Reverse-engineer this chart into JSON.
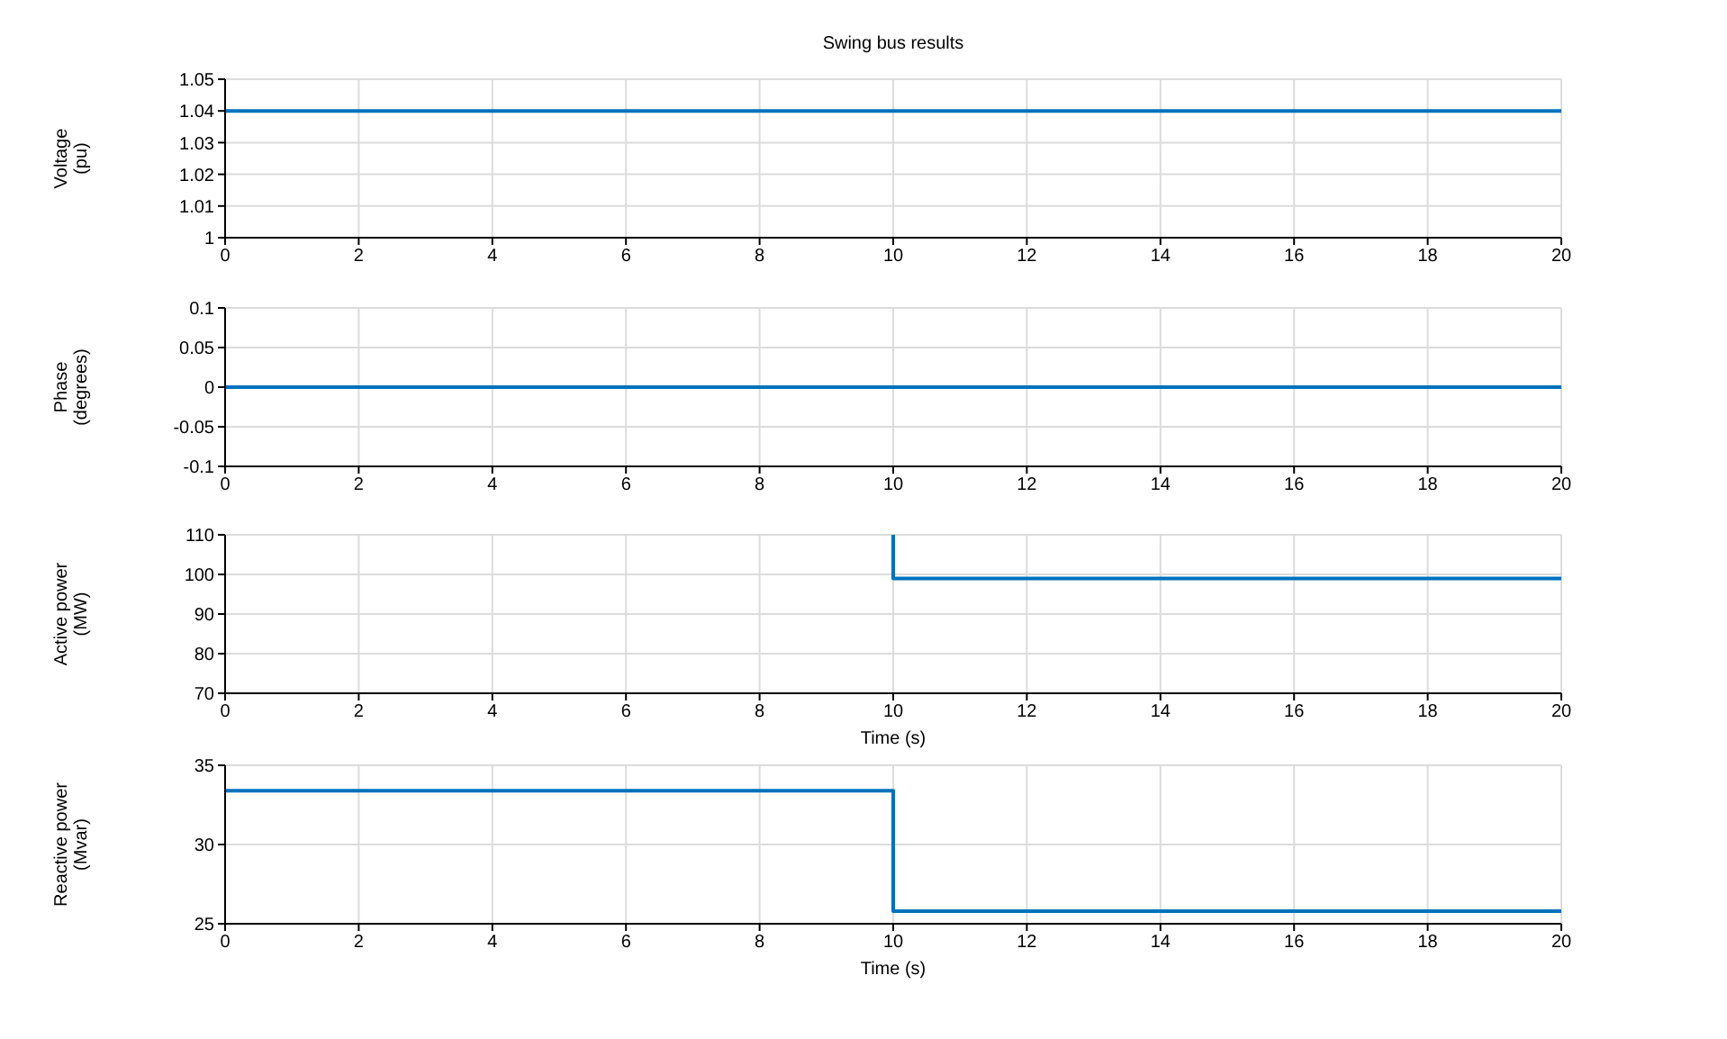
{
  "chart_data": [
    {
      "type": "line",
      "title": "Swing bus results",
      "ylabel": "Voltage (pu)",
      "x": [
        0,
        20
      ],
      "series": [
        {
          "color": "#0072bd",
          "values": [
            1.04,
            1.04
          ]
        }
      ],
      "xlim": [
        0,
        20
      ],
      "xticks": [
        0,
        2,
        4,
        6,
        8,
        10,
        12,
        14,
        16,
        18,
        20
      ],
      "ylim": [
        1,
        1.05
      ],
      "yticks": [
        1,
        1.01,
        1.02,
        1.03,
        1.04,
        1.05
      ],
      "grid": true,
      "legend": false
    },
    {
      "type": "line",
      "ylabel": "Phase (degrees)",
      "x": [
        0,
        20
      ],
      "series": [
        {
          "color": "#0072bd",
          "values": [
            0,
            0
          ]
        }
      ],
      "xlim": [
        0,
        20
      ],
      "xticks": [
        0,
        2,
        4,
        6,
        8,
        10,
        12,
        14,
        16,
        18,
        20
      ],
      "ylim": [
        -0.1,
        0.1
      ],
      "yticks": [
        -0.1,
        -0.05,
        0,
        0.05,
        0.1
      ],
      "grid": true,
      "legend": false
    },
    {
      "type": "line",
      "xlabel": "Time (s)",
      "ylabel": "Active power (MW)",
      "x": [
        10,
        10,
        20
      ],
      "series": [
        {
          "color": "#0072bd",
          "values": [
            110,
            99,
            99
          ]
        }
      ],
      "xlim": [
        0,
        20
      ],
      "xticks": [
        0,
        2,
        4,
        6,
        8,
        10,
        12,
        14,
        16,
        18,
        20
      ],
      "ylim": [
        70,
        110
      ],
      "yticks": [
        70,
        80,
        90,
        100,
        110
      ],
      "grid": true,
      "legend": false
    },
    {
      "type": "line",
      "xlabel": "Time (s)",
      "ylabel": "Reactive power (Mvar)",
      "x": [
        0,
        10,
        10,
        20
      ],
      "series": [
        {
          "color": "#0072bd",
          "values": [
            33.4,
            33.4,
            25.8,
            25.8
          ]
        }
      ],
      "xlim": [
        0,
        20
      ],
      "xticks": [
        0,
        2,
        4,
        6,
        8,
        10,
        12,
        14,
        16,
        18,
        20
      ],
      "ylim": [
        25,
        35
      ],
      "yticks": [
        25,
        30,
        35
      ],
      "grid": true,
      "legend": false
    }
  ]
}
